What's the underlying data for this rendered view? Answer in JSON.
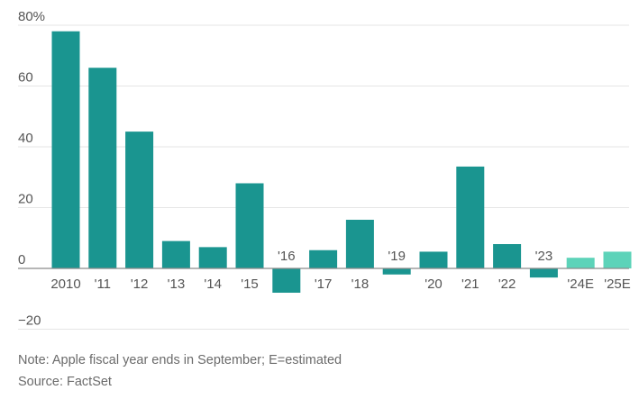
{
  "chart_data": {
    "type": "bar",
    "categories": [
      "2010",
      "'11",
      "'12",
      "'13",
      "'14",
      "'15",
      "'16",
      "'17",
      "'18",
      "'19",
      "'20",
      "'21",
      "'22",
      "'23",
      "'24E",
      "'25E"
    ],
    "values": [
      78,
      66,
      45,
      9,
      7,
      28,
      -8,
      6,
      16,
      -2,
      5.5,
      33.5,
      8,
      -3,
      3.5,
      5.5
    ],
    "estimated": [
      false,
      false,
      false,
      false,
      false,
      false,
      false,
      false,
      false,
      false,
      false,
      false,
      false,
      false,
      true,
      true
    ],
    "y_ticks": [
      80,
      60,
      40,
      20,
      0,
      -20
    ],
    "y_tick_labels": [
      "80%",
      "60",
      "40",
      "20",
      "0",
      "−20"
    ],
    "ylim": [
      -20,
      80
    ],
    "grid": true,
    "title": "",
    "xlabel": "",
    "ylabel": "",
    "colors": {
      "actual": "#1a9590",
      "estimated": "#5dd3b9",
      "grid": "#e6e6e6",
      "zero_line": "#8a8a8a"
    }
  },
  "notes": {
    "note": "Note: Apple fiscal year ends in September; E=estimated",
    "source": "Source: FactSet"
  }
}
